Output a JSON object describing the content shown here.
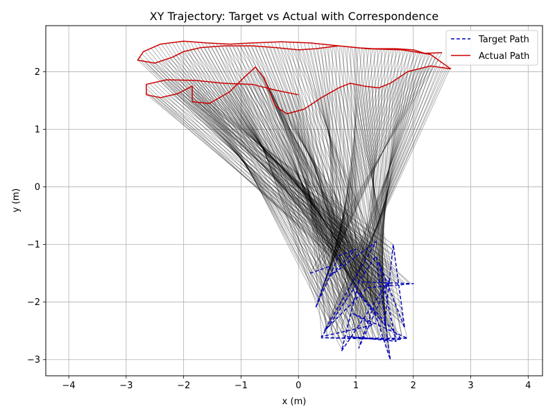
{
  "chart_data": {
    "type": "line",
    "title": "XY Trajectory: Target vs Actual with Correspondence",
    "xlabel": "x (m)",
    "ylabel": "y (m)",
    "xlim": [
      -4.4,
      4.25
    ],
    "ylim": [
      -3.28,
      2.8
    ],
    "xticks": [
      -4,
      -3,
      -2,
      -1,
      0,
      1,
      2,
      3,
      4
    ],
    "yticks": [
      -3,
      -2,
      -1,
      0,
      1,
      2
    ],
    "grid": true,
    "legend_position": "top-right",
    "series": [
      {
        "name": "Target Path",
        "color": "#0000bb",
        "style": "dashed",
        "points": [
          [
            0.2,
            -1.5
          ],
          [
            0.55,
            -1.38
          ],
          [
            0.3,
            -2.1
          ],
          [
            0.7,
            -1.2
          ],
          [
            1.0,
            -1.08
          ],
          [
            0.55,
            -1.55
          ],
          [
            1.35,
            -0.95
          ],
          [
            0.45,
            -2.5
          ],
          [
            1.2,
            -1.75
          ],
          [
            2.0,
            -1.68
          ],
          [
            1.05,
            -1.65
          ],
          [
            0.75,
            -2.85
          ],
          [
            1.6,
            -1.6
          ],
          [
            1.05,
            -2.8
          ],
          [
            1.3,
            -2.1
          ],
          [
            1.6,
            -3.0
          ],
          [
            1.35,
            -1.2
          ],
          [
            0.4,
            -2.6
          ],
          [
            1.3,
            -2.4
          ],
          [
            0.95,
            -2.2
          ],
          [
            1.9,
            -2.63
          ],
          [
            0.4,
            -2.62
          ],
          [
            1.8,
            -2.65
          ],
          [
            1.0,
            -1.8
          ],
          [
            1.5,
            -2.4
          ],
          [
            1.65,
            -1.0
          ],
          [
            1.85,
            -2.45
          ],
          [
            1.4,
            -1.3
          ],
          [
            1.7,
            -2.68
          ],
          [
            0.85,
            -2.6
          ],
          [
            1.55,
            -2.65
          ]
        ]
      },
      {
        "name": "Actual Path",
        "color": "#cc0000",
        "style": "solid",
        "points": [
          [
            2.5,
            2.33
          ],
          [
            2.2,
            2.32
          ],
          [
            2.0,
            2.38
          ],
          [
            1.7,
            2.4
          ],
          [
            1.3,
            2.4
          ],
          [
            1.0,
            2.42
          ],
          [
            0.7,
            2.45
          ],
          [
            0.3,
            2.4
          ],
          [
            0.0,
            2.38
          ],
          [
            -0.4,
            2.42
          ],
          [
            -0.8,
            2.45
          ],
          [
            -1.3,
            2.45
          ],
          [
            -1.7,
            2.42
          ],
          [
            -2.0,
            2.35
          ],
          [
            -2.2,
            2.25
          ],
          [
            -2.5,
            2.15
          ],
          [
            -2.8,
            2.2
          ],
          [
            -2.7,
            2.35
          ],
          [
            -2.4,
            2.48
          ],
          [
            -2.0,
            2.53
          ],
          [
            -1.6,
            2.5
          ],
          [
            -1.2,
            2.48
          ],
          [
            -0.8,
            2.5
          ],
          [
            -0.3,
            2.52
          ],
          [
            0.2,
            2.5
          ],
          [
            0.7,
            2.45
          ],
          [
            1.2,
            2.4
          ],
          [
            1.8,
            2.38
          ],
          [
            2.3,
            2.3
          ],
          [
            2.65,
            2.05
          ],
          [
            2.3,
            2.1
          ],
          [
            1.9,
            2.0
          ],
          [
            1.6,
            1.8
          ],
          [
            1.4,
            1.72
          ],
          [
            1.15,
            1.75
          ],
          [
            0.9,
            1.8
          ],
          [
            0.7,
            1.72
          ],
          [
            0.4,
            1.55
          ],
          [
            0.1,
            1.35
          ],
          [
            -0.2,
            1.27
          ],
          [
            -0.4,
            1.4
          ],
          [
            -0.6,
            1.9
          ],
          [
            -0.75,
            2.08
          ],
          [
            -0.95,
            1.9
          ],
          [
            -1.2,
            1.65
          ],
          [
            -1.55,
            1.45
          ],
          [
            -1.85,
            1.48
          ],
          [
            -1.85,
            1.75
          ],
          [
            -2.1,
            1.62
          ],
          [
            -2.4,
            1.55
          ],
          [
            -2.65,
            1.6
          ],
          [
            -2.65,
            1.78
          ],
          [
            -2.3,
            1.86
          ],
          [
            -1.8,
            1.85
          ],
          [
            -1.3,
            1.8
          ],
          [
            -0.8,
            1.78
          ],
          [
            -0.4,
            1.68
          ],
          [
            0.0,
            1.6
          ]
        ]
      }
    ],
    "correspondence_color": "#000000"
  }
}
